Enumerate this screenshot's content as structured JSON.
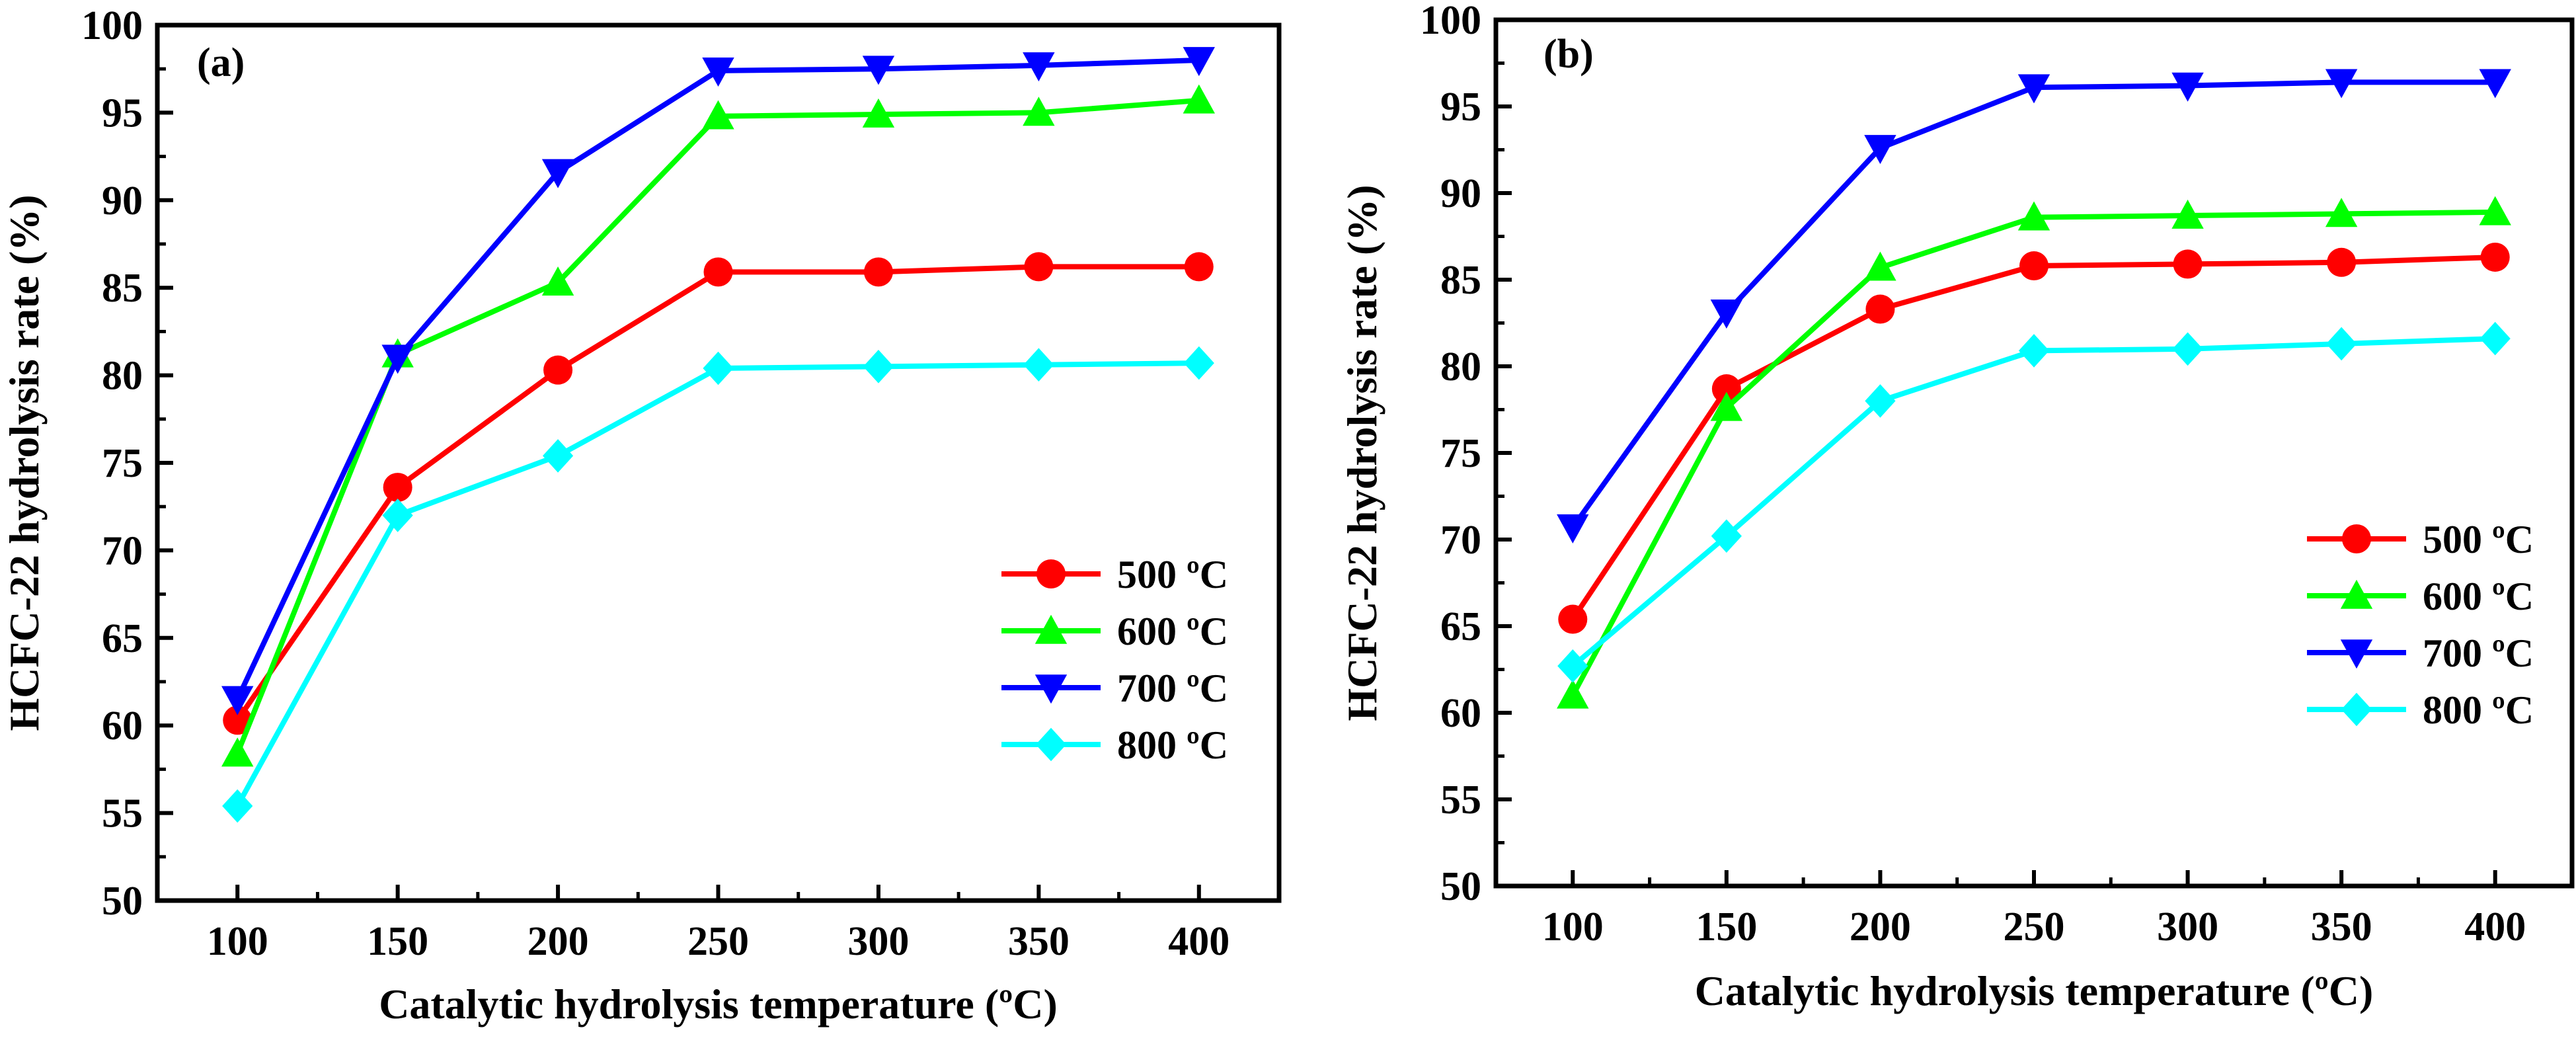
{
  "chart_data": [
    {
      "type": "line",
      "panel_label": "(a)",
      "xlabel": "Catalytic hydrolysis temperature (ºC)",
      "ylabel": "HCFC-22 hydrolysis rate (%)",
      "x": [
        100,
        150,
        200,
        250,
        300,
        350,
        400
      ],
      "x_ticks": [
        "100",
        "150",
        "200",
        "250",
        "300",
        "350",
        "400"
      ],
      "xlim": [
        75,
        425
      ],
      "ylim": [
        50,
        100
      ],
      "y_ticks": [
        "50",
        "55",
        "60",
        "65",
        "70",
        "75",
        "80",
        "85",
        "90",
        "95",
        "100"
      ],
      "grid": false,
      "legend_position": "center-right",
      "series": [
        {
          "name": "500 ºC",
          "color": "#ff0000",
          "marker": "circle",
          "values": [
            60.3,
            73.6,
            80.3,
            85.9,
            85.9,
            86.2,
            86.2
          ]
        },
        {
          "name": "600 ºC",
          "color": "#00ff00",
          "marker": "triangle-up",
          "values": [
            58.4,
            81.2,
            85.3,
            94.8,
            94.9,
            95.0,
            95.7
          ]
        },
        {
          "name": "700 ºC",
          "color": "#0000ff",
          "marker": "triangle-down",
          "values": [
            61.5,
            81.0,
            91.6,
            97.4,
            97.5,
            97.7,
            98.0
          ]
        },
        {
          "name": "800 ºC",
          "color": "#00ffff",
          "marker": "diamond",
          "values": [
            55.4,
            72.0,
            75.4,
            80.4,
            80.5,
            80.6,
            80.7
          ]
        }
      ]
    },
    {
      "type": "line",
      "panel_label": "(b)",
      "xlabel": "Catalytic hydrolysis temperature (ºC)",
      "ylabel": "HCFC-22 hydrolysis rate (%)",
      "x": [
        100,
        150,
        200,
        250,
        300,
        350,
        400
      ],
      "x_ticks": [
        "100",
        "150",
        "200",
        "250",
        "300",
        "350",
        "400"
      ],
      "xlim": [
        75,
        425
      ],
      "ylim": [
        50,
        100
      ],
      "y_ticks": [
        "50",
        "55",
        "60",
        "65",
        "70",
        "75",
        "80",
        "85",
        "90",
        "95",
        "100"
      ],
      "grid": false,
      "legend_position": "center-right",
      "series": [
        {
          "name": "500 ºC",
          "color": "#ff0000",
          "marker": "circle",
          "values": [
            65.4,
            78.7,
            83.3,
            85.8,
            85.9,
            86.0,
            86.3
          ]
        },
        {
          "name": "600 ºC",
          "color": "#00ff00",
          "marker": "triangle-up",
          "values": [
            61.0,
            77.6,
            85.7,
            88.6,
            88.7,
            88.8,
            88.9
          ]
        },
        {
          "name": "700 ºC",
          "color": "#0000ff",
          "marker": "triangle-down",
          "values": [
            70.7,
            83.1,
            92.6,
            96.1,
            96.2,
            96.4,
            96.4
          ]
        },
        {
          "name": "800 ºC",
          "color": "#00ffff",
          "marker": "diamond",
          "values": [
            62.7,
            70.2,
            78.0,
            80.9,
            81.0,
            81.3,
            81.6
          ]
        }
      ]
    }
  ]
}
